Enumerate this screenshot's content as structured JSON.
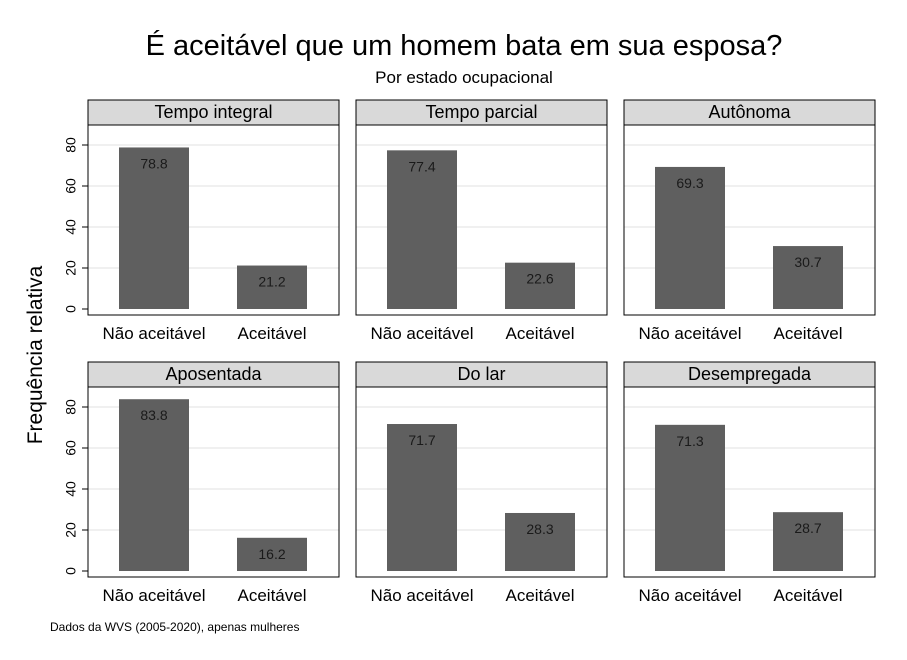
{
  "chart_data": {
    "type": "bar",
    "title": "É aceitável que um homem bata em sua esposa?",
    "subtitle": "Por estado ocupacional",
    "ylabel": "Frequência relativa",
    "note": "Dados da WVS (2005-2020), apenas mulheres",
    "categories": [
      "Não aceitável",
      "Aceitável"
    ],
    "ylim": [
      0,
      90
    ],
    "yticks": [
      0,
      20,
      40,
      60,
      80
    ],
    "grid": true,
    "colors": {
      "bar": "#5f5f5f",
      "strip": "#d9d9d9",
      "grid": "#e0e0e0"
    },
    "panels": [
      {
        "name": "Tempo integral",
        "values": [
          78.8,
          21.2
        ],
        "labels": [
          "78.8",
          "21.2"
        ]
      },
      {
        "name": "Tempo parcial",
        "values": [
          77.4,
          22.6
        ],
        "labels": [
          "77.4",
          "22.6"
        ]
      },
      {
        "name": "Autônoma",
        "values": [
          69.3,
          30.7
        ],
        "labels": [
          "69.3",
          "30.7"
        ]
      },
      {
        "name": "Aposentada",
        "values": [
          83.8,
          16.2
        ],
        "labels": [
          "83.8",
          "16.2"
        ]
      },
      {
        "name": "Do lar",
        "values": [
          71.7,
          28.3
        ],
        "labels": [
          "71.7",
          "28.3"
        ]
      },
      {
        "name": "Desempregada",
        "values": [
          71.3,
          28.7
        ],
        "labels": [
          "71.3",
          "28.7"
        ]
      }
    ]
  }
}
